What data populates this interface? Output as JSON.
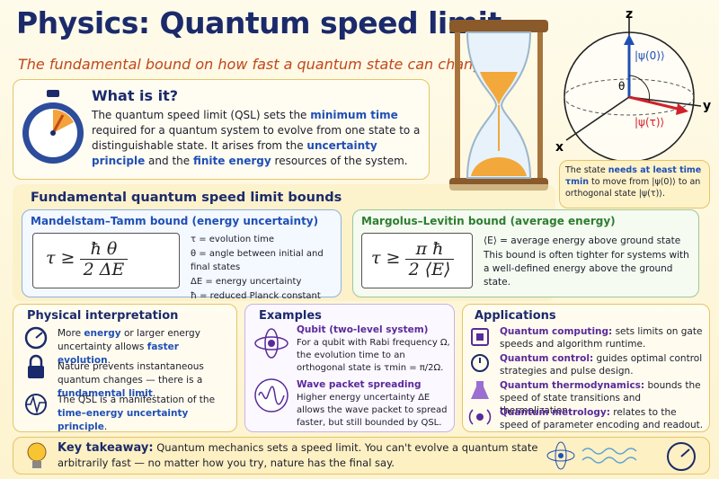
{
  "header": {
    "title": "Physics: Quantum speed limit",
    "subtitle": "The fundamental bound on how fast a quantum state can change"
  },
  "what": {
    "title": "What is it?",
    "body": [
      "The quantum speed limit (QSL) sets the ",
      "minimum time",
      " required for a quantum system to evolve from one state to a distinguishable state. It arises from the ",
      "uncertainty principle",
      " and the ",
      "finite energy",
      " resources of the system."
    ]
  },
  "bloch": {
    "axis_z": "z",
    "axis_y": "y",
    "axis_x": "x",
    "state0": "|ψ(0)⟩",
    "angle": "θ",
    "state_tau": "|ψ(τ)⟩",
    "caption": [
      "The state ",
      "needs at least time τmin",
      " to move from |ψ(0)⟩ to an orthogonal state |ψ(τ)⟩."
    ]
  },
  "bounds": {
    "title": "Fundamental quantum speed limit bounds",
    "mandelstam_tamm": {
      "title": "Mandelstam–Tamm bound (energy uncertainty)",
      "lhs": "τ ≥",
      "numerator": "ħ θ",
      "denominator": "2 ΔE",
      "definitions": [
        "τ = evolution time",
        "θ = angle between initial and final states",
        "ΔE = energy uncertainty",
        "ħ = reduced Planck constant"
      ]
    },
    "margolus_levitin": {
      "title": "Margolus–Levitin bound (average energy)",
      "lhs": "τ ≥",
      "numerator": "π ħ",
      "denominator": "2 ⟨E⟩",
      "definitions": [
        "⟨E⟩ = average energy above ground state",
        "This bound is often tighter for systems with a well-defined energy above the ground state."
      ]
    }
  },
  "interpretation": {
    "title": "Physical interpretation",
    "items": [
      [
        "More ",
        "energy",
        " or larger energy uncertainty allows ",
        "faster evolution",
        "."
      ],
      [
        "Nature prevents instantaneous quantum changes — there is a ",
        "fundamental limit",
        "."
      ],
      [
        "The QSL is a manifestation of the ",
        "time–energy uncertainty principle",
        "."
      ]
    ]
  },
  "examples": {
    "title": "Examples",
    "items": [
      {
        "title": "Qubit (two-level system)",
        "body": "For a qubit with Rabi frequency Ω, the evolution time to an orthogonal state is τmin = π/2Ω."
      },
      {
        "title": "Wave packet spreading",
        "body": "Higher energy uncertainty ΔE allows the wave packet to spread faster, but still bounded by QSL."
      }
    ]
  },
  "applications": {
    "title": "Applications",
    "items": [
      {
        "label": "Quantum computing:",
        "text": " sets limits on gate speeds and algorithm runtime."
      },
      {
        "label": "Quantum control:",
        "text": " guides optimal control strategies and pulse design."
      },
      {
        "label": "Quantum thermodynamics:",
        "text": " bounds the speed of state transitions and thermalization."
      },
      {
        "label": "Quantum metrology:",
        "text": " relates to the speed of parameter encoding and readout."
      }
    ]
  },
  "takeaway": {
    "label": "Key takeaway:",
    "text": "Quantum mechanics sets a speed limit. You can't evolve a quantum state arbitrarily fast — no matter how you try, nature has the final say."
  }
}
